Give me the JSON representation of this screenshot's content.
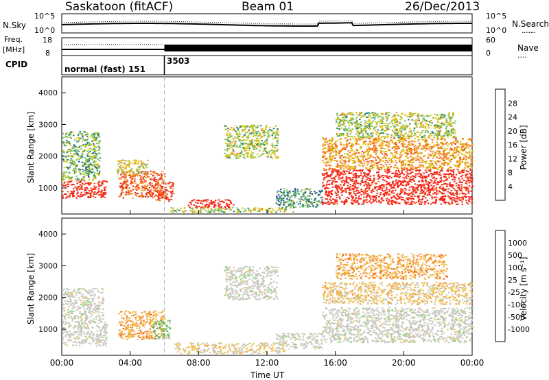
{
  "header": {
    "station": "Saskatoon (fitACF)",
    "beam": "Beam 01",
    "date": "26/Dec/2013"
  },
  "noise_panel": {
    "left_label": "N.Sky",
    "right_label": "N.Search",
    "right_marker": "........",
    "left_ticks": [
      "10^5",
      "10^0"
    ],
    "right_ticks": [
      "10^5",
      "10^0"
    ]
  },
  "freq_panel": {
    "left_label_1": "Freq.",
    "left_label_2": "[MHz]",
    "right_label": "Nave",
    "right_marker": "....",
    "left_ticks": [
      "18",
      "8"
    ],
    "right_ticks": [
      "60",
      "0"
    ]
  },
  "cpid_panel": {
    "label": "CPID",
    "programs": [
      {
        "name": "normal (fast) 151",
        "start_hour": 0
      },
      {
        "name": "3503",
        "start_hour": 6.0
      }
    ]
  },
  "power_panel": {
    "ylabel": "Slant Range [km]",
    "colorbar_label": "Power [dB]"
  },
  "velocity_panel": {
    "ylabel": "Slant Range [km]",
    "colorbar_label": "Velocity [m s⁻¹]"
  },
  "xaxis": {
    "label": "Time UT"
  },
  "colors": {
    "power_scale": [
      "#1b1bf0",
      "#2e4f9a",
      "#27856a",
      "#7fbf6a",
      "#d6c80b",
      "#f59b1c",
      "#f4651e",
      "#e4321b",
      "#ff1f12"
    ],
    "velocity_scale": [
      "#ef1a13",
      "#f2661e",
      "#f5a13a",
      "#f0c860",
      "#c8c8c0",
      "#c8c8c0",
      "#7cd95a",
      "#3e9b52",
      "#2f6d8c",
      "#1d2fbd"
    ],
    "cpid_divider": "#b4b4b4"
  },
  "chart_data": [
    {
      "type": "heatmap",
      "title": "Power",
      "ylabel": "Slant Range [km]",
      "xlabel": "Time UT",
      "x_ticks": [
        "00:00",
        "04:00",
        "08:00",
        "12:00",
        "16:00",
        "20:00",
        "00:00"
      ],
      "y_ticks": [
        "1000",
        "2000",
        "3000",
        "4000"
      ],
      "colorbar_ticks": [
        "4",
        "8",
        "12",
        "16",
        "20",
        "24",
        "28"
      ],
      "colorbar_label": "Power [dB]",
      "xlim_hours": [
        0,
        24
      ],
      "ylim_km": [
        180,
        4500
      ],
      "scatter_regions": [
        {
          "t0": 0.0,
          "t1": 2.6,
          "r0": 700,
          "r1": 1250,
          "level": 26
        },
        {
          "t0": 0.0,
          "t1": 2.2,
          "r0": 1250,
          "r1": 2800,
          "level": 10
        },
        {
          "t0": 3.3,
          "t1": 6.0,
          "r0": 700,
          "r1": 1550,
          "level": 22
        },
        {
          "t0": 3.2,
          "t1": 5.0,
          "r0": 1400,
          "r1": 1900,
          "level": 14
        },
        {
          "t0": 5.4,
          "t1": 6.5,
          "r0": 600,
          "r1": 1200,
          "level": 24
        },
        {
          "t0": 7.3,
          "t1": 10.0,
          "r0": 400,
          "r1": 650,
          "level": 28
        },
        {
          "t0": 6.3,
          "t1": 13.5,
          "r0": 250,
          "r1": 400,
          "level": 12
        },
        {
          "t0": 9.5,
          "t1": 12.6,
          "r0": 1950,
          "r1": 3000,
          "level": 12
        },
        {
          "t0": 12.5,
          "t1": 15.2,
          "r0": 400,
          "r1": 1000,
          "level": 8
        },
        {
          "t0": 15.2,
          "t1": 24.0,
          "r0": 500,
          "r1": 1600,
          "level": 27
        },
        {
          "t0": 15.2,
          "t1": 24.0,
          "r0": 1600,
          "r1": 2600,
          "level": 18
        },
        {
          "t0": 16.0,
          "t1": 23.0,
          "r0": 2600,
          "r1": 3400,
          "level": 12
        }
      ]
    },
    {
      "type": "heatmap",
      "title": "Velocity",
      "ylabel": "Slant Range [km]",
      "xlabel": "Time UT",
      "x_ticks": [
        "00:00",
        "04:00",
        "08:00",
        "12:00",
        "16:00",
        "20:00",
        "00:00"
      ],
      "y_ticks": [
        "1000",
        "2000",
        "3000",
        "4000"
      ],
      "colorbar_ticks": [
        "1000",
        "500",
        "100",
        "25",
        "-25",
        "-100",
        "-500",
        "-1000"
      ],
      "colorbar_label": "Velocity [m s⁻¹]",
      "xlim_hours": [
        0,
        24
      ],
      "ylim_km": [
        180,
        4500
      ],
      "scatter_regions": [
        {
          "t0": 0.0,
          "t1": 2.6,
          "r0": 500,
          "r1": 1300,
          "level": 0
        },
        {
          "t0": 0.0,
          "t1": 2.4,
          "r0": 1300,
          "r1": 2300,
          "level": 0
        },
        {
          "t0": 3.3,
          "t1": 6.0,
          "r0": 700,
          "r1": 1600,
          "level": -300
        },
        {
          "t0": 5.3,
          "t1": 6.3,
          "r0": 700,
          "r1": 1300,
          "level": 200
        },
        {
          "t0": 6.5,
          "t1": 13.0,
          "r0": 250,
          "r1": 600,
          "level": -150
        },
        {
          "t0": 9.5,
          "t1": 12.6,
          "r0": 1950,
          "r1": 3000,
          "level": 0
        },
        {
          "t0": 12.5,
          "t1": 15.2,
          "r0": 400,
          "r1": 900,
          "level": 0
        },
        {
          "t0": 15.2,
          "t1": 24.0,
          "r0": 600,
          "r1": 1700,
          "level": 0
        },
        {
          "t0": 15.2,
          "t1": 24.0,
          "r0": 1800,
          "r1": 2500,
          "level": -200
        },
        {
          "t0": 16.0,
          "t1": 22.5,
          "r0": 2600,
          "r1": 3400,
          "level": -300
        }
      ]
    }
  ]
}
